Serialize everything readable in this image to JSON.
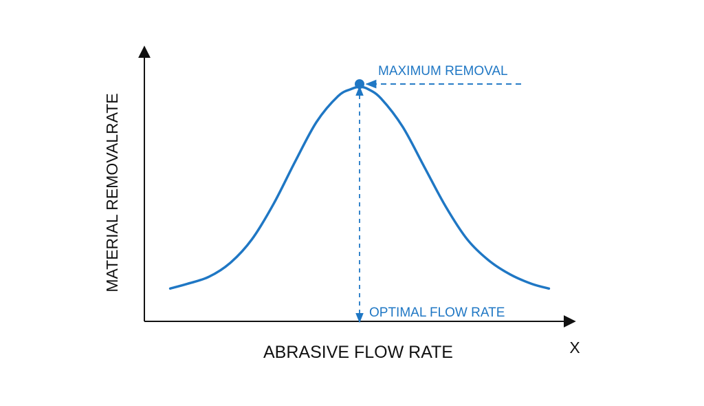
{
  "chart_data": {
    "type": "line",
    "title": "",
    "xlabel": "ABRASIVE FLOW RATE",
    "ylabel": "MATERIAL REMOVALRATE",
    "x_axis_end_label": "X",
    "series": [
      {
        "color": "#1f77c4",
        "x": [
          0.06,
          0.1,
          0.15,
          0.2,
          0.25,
          0.3,
          0.35,
          0.4,
          0.45,
          0.48,
          0.5,
          0.52,
          0.55,
          0.6,
          0.65,
          0.7,
          0.75,
          0.8,
          0.85,
          0.9,
          0.94
        ],
        "y": [
          0.14,
          0.16,
          0.19,
          0.25,
          0.35,
          0.5,
          0.68,
          0.85,
          0.96,
          0.99,
          1.0,
          0.99,
          0.95,
          0.83,
          0.66,
          0.49,
          0.35,
          0.26,
          0.2,
          0.16,
          0.14
        ]
      }
    ],
    "xlim": [
      0,
      1
    ],
    "ylim": [
      0,
      1.15
    ],
    "grid": false,
    "annotations": [
      {
        "type": "peak-marker",
        "x": 0.5,
        "y": 1.0,
        "text": "MAXIMUM REMOVAL"
      },
      {
        "type": "vertical-reference",
        "x": 0.5,
        "text": "OPTIMAL FLOW RATE"
      }
    ],
    "colors": {
      "axis": "#111111",
      "curve": "#1f77c4",
      "annotation": "#1f77c4"
    }
  }
}
